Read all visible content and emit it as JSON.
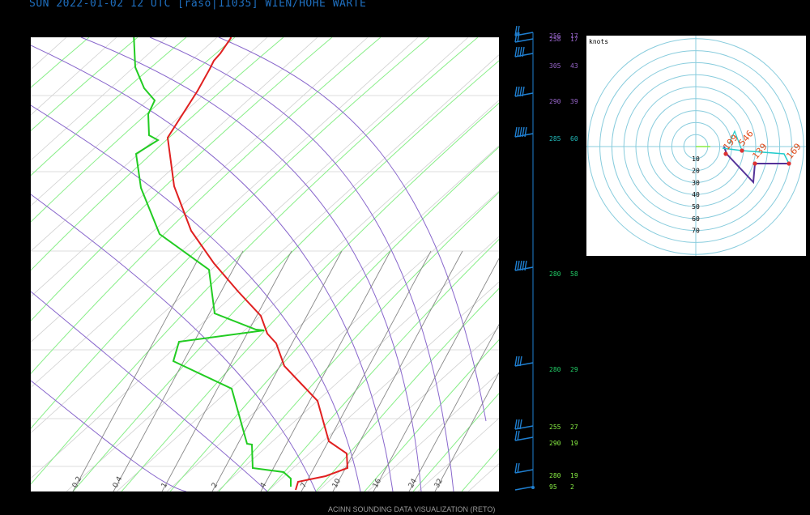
{
  "header": {
    "title": "SUN 2022-01-02 12 UTC [raso|11035] WIEN/HOHE WARTE"
  },
  "footer": {
    "credit": "ACINN SOUNDING DATA VISUALIZATION (RETO)"
  },
  "colors": {
    "temperature": "#e02020",
    "dewpoint": "#22cc22",
    "dry_adiabat": "#88ee88",
    "moist_adiabat": "#8866cc",
    "mixing_ratio": "#888888",
    "isotherm": "#d0d0d0",
    "wind_barb": "#1f7fd0",
    "hodo_ring": "#88ccdd"
  },
  "chart_data": [
    {
      "type": "line",
      "name": "skew-t diagram",
      "mixing_ratio_labels": [
        "0.2",
        "0.4",
        "1",
        "2",
        "4",
        "7",
        "10",
        "16",
        "24",
        "32"
      ],
      "series": [
        {
          "name": "temperature",
          "points": [
            [
              293,
              -2
            ],
            [
              276,
              13
            ],
            [
              285,
              47
            ],
            [
              272,
              66
            ],
            [
              264,
              75
            ],
            [
              259,
              85
            ],
            [
              244,
              112
            ],
            [
              207,
              170
            ],
            [
              215,
              230
            ],
            [
              236,
              285
            ],
            [
              264,
              325
            ],
            [
              294,
              360
            ],
            [
              322,
              390
            ],
            [
              330,
              412
            ],
            [
              341,
              424
            ],
            [
              351,
              452
            ],
            [
              370,
              472
            ],
            [
              392,
              495
            ],
            [
              406,
              545
            ],
            [
              428,
              560
            ],
            [
              429,
              578
            ],
            [
              402,
              588
            ],
            [
              368,
              595
            ],
            [
              365,
              605
            ]
          ]
        },
        {
          "name": "dewpoint",
          "points": [
            [
              163,
              -2
            ],
            [
              167,
              83
            ],
            [
              178,
              109
            ],
            [
              191,
              124
            ],
            [
              183,
              141
            ],
            [
              184,
              167
            ],
            [
              195,
              173
            ],
            [
              168,
              190
            ],
            [
              174,
              232
            ],
            [
              197,
              289
            ],
            [
              258,
              333
            ],
            [
              265,
              387
            ],
            [
              316,
              407
            ],
            [
              326,
              408
            ],
            [
              221,
              422
            ],
            [
              214,
              446
            ],
            [
              286,
              480
            ],
            [
              305,
              548
            ],
            [
              311,
              549
            ],
            [
              312,
              578
            ],
            [
              350,
              583
            ],
            [
              359,
              591
            ],
            [
              359,
              601
            ]
          ]
        }
      ]
    },
    {
      "type": "table",
      "name": "wind profile",
      "columns": [
        "direction",
        "speed"
      ],
      "rows": [
        {
          "dir": "256",
          "spd": "17",
          "color": "#9966cc"
        },
        {
          "dir": "258",
          "spd": "17",
          "color": "#9966cc"
        },
        {
          "dir": "305",
          "spd": "43",
          "color": "#9966cc"
        },
        {
          "dir": "290",
          "spd": "39",
          "color": "#9966cc"
        },
        {
          "dir": "285",
          "spd": "60",
          "color": "#22bbbb"
        },
        {
          "dir": "280",
          "spd": "58",
          "color": "#22cc66"
        },
        {
          "dir": "280",
          "spd": "29",
          "color": "#22cc66"
        },
        {
          "dir": "255",
          "spd": "27",
          "color": "#88ee44"
        },
        {
          "dir": "290",
          "spd": "19",
          "color": "#88ee44"
        },
        {
          "dir": "280",
          "spd": "19",
          "color": "#88ee44"
        },
        {
          "dir": "95",
          "spd": "2",
          "color": "#88ee44"
        }
      ]
    },
    {
      "type": "scatter",
      "name": "hodograph",
      "unit_label": "knots",
      "ring_labels": [
        "10",
        "20",
        "30",
        "40",
        "50",
        "60",
        "70"
      ],
      "point_labels": [
        "199",
        "546",
        "139",
        "169"
      ]
    }
  ]
}
